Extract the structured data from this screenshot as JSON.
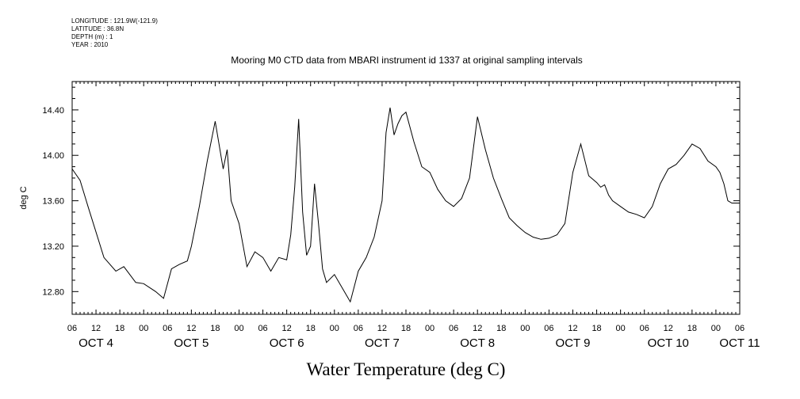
{
  "meta": {
    "longitude": "LONGITUDE : 121.9W(-121.9)",
    "latitude": "LATITUDE : 36.8N",
    "depth": "DEPTH (m) : 1",
    "year": "YEAR : 2010"
  },
  "chart_data": {
    "type": "line",
    "title": "Mooring M0 CTD data from MBARI instrument id 1337 at original sampling intervals",
    "caption": "Water Temperature (deg C)",
    "ylabel": "deg C",
    "xlabel": "",
    "x_unit": "hours since OCT 4 06:00",
    "xlim": [
      0,
      168
    ],
    "ylim": [
      12.6,
      14.65
    ],
    "y_ticks": [
      12.8,
      13.2,
      13.6,
      14.0,
      14.4
    ],
    "y_tick_labels": [
      "12.80",
      "13.20",
      "13.60",
      "14.00",
      "14.40"
    ],
    "hour_tick_labels": [
      "06",
      "12",
      "18",
      "00",
      "06",
      "12",
      "18",
      "00",
      "06",
      "12",
      "18",
      "00",
      "06",
      "12",
      "18",
      "00",
      "06",
      "12",
      "18",
      "00",
      "06",
      "12",
      "18",
      "00",
      "06",
      "12",
      "18",
      "00",
      "06"
    ],
    "day_labels": [
      {
        "label": "OCT  4",
        "hour": 6
      },
      {
        "label": "OCT  5",
        "hour": 30
      },
      {
        "label": "OCT  6",
        "hour": 54
      },
      {
        "label": "OCT  7",
        "hour": 78
      },
      {
        "label": "OCT  8",
        "hour": 102
      },
      {
        "label": "OCT  9",
        "hour": 126
      },
      {
        "label": "OCT 10",
        "hour": 150
      },
      {
        "label": "OCT 11",
        "hour": 168
      }
    ],
    "grid": false,
    "legend": "none",
    "series": [
      {
        "color": "#000000",
        "x": [
          0,
          2,
          4,
          8,
          11,
          13,
          16,
          18,
          21,
          23,
          25,
          27,
          29,
          30,
          32,
          34,
          36,
          38,
          39,
          40,
          42,
          44,
          46,
          48,
          50,
          52,
          54,
          55,
          56,
          57,
          58,
          59,
          60,
          61,
          62,
          63,
          64,
          66,
          68,
          70,
          72,
          74,
          76,
          78,
          79,
          80,
          81,
          82,
          83,
          84,
          85,
          86,
          88,
          90,
          92,
          94,
          96,
          98,
          100,
          102,
          104,
          106,
          108,
          110,
          112,
          114,
          116,
          118,
          120,
          122,
          124,
          126,
          128,
          130,
          132,
          133,
          134,
          135,
          136,
          138,
          140,
          142,
          144,
          146,
          148,
          150,
          152,
          154,
          156,
          158,
          160,
          162,
          163,
          164,
          165,
          166,
          167,
          168
        ],
        "y": [
          13.88,
          13.78,
          13.55,
          13.1,
          12.98,
          13.02,
          12.88,
          12.87,
          12.8,
          12.74,
          13.0,
          13.04,
          13.07,
          13.2,
          13.55,
          13.95,
          14.3,
          13.88,
          14.05,
          13.6,
          13.4,
          13.02,
          13.15,
          13.1,
          12.98,
          13.1,
          13.08,
          13.3,
          13.72,
          14.32,
          13.5,
          13.12,
          13.2,
          13.75,
          13.4,
          13.0,
          12.88,
          12.95,
          12.83,
          12.71,
          12.98,
          13.1,
          13.28,
          13.6,
          14.2,
          14.42,
          14.18,
          14.28,
          14.35,
          14.38,
          14.25,
          14.12,
          13.9,
          13.85,
          13.7,
          13.6,
          13.55,
          13.62,
          13.8,
          14.34,
          14.05,
          13.8,
          13.62,
          13.45,
          13.38,
          13.32,
          13.28,
          13.26,
          13.27,
          13.3,
          13.4,
          13.85,
          14.1,
          13.82,
          13.76,
          13.72,
          13.74,
          13.65,
          13.6,
          13.55,
          13.5,
          13.48,
          13.45,
          13.55,
          13.75,
          13.88,
          13.92,
          14.0,
          14.1,
          14.06,
          13.95,
          13.9,
          13.85,
          13.75,
          13.6,
          13.58,
          13.58,
          13.58
        ]
      }
    ]
  }
}
